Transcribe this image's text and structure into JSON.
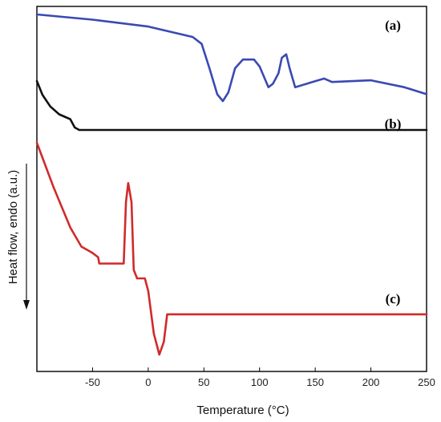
{
  "chart_data": {
    "type": "line",
    "title": "",
    "xlabel": "Temperature (°C)",
    "ylabel": "Heat flow, endo (a.u.)",
    "xlim": [
      -100,
      250
    ],
    "xticks": [
      -50,
      0,
      50,
      100,
      150,
      200,
      250
    ],
    "y_tick_labels": "none",
    "grid": false,
    "legend": "none",
    "ylabel_arrow": "down",
    "series": [
      {
        "name": "(a)",
        "color": "#3a49b3",
        "y_units": "relative heat flow (arbitrary)",
        "points": [
          [
            -100,
            0.0
          ],
          [
            -50,
            0.06
          ],
          [
            0,
            0.14
          ],
          [
            40,
            0.26
          ],
          [
            48,
            0.34
          ],
          [
            55,
            0.62
          ],
          [
            62,
            0.92
          ],
          [
            67,
            1.0
          ],
          [
            72,
            0.9
          ],
          [
            78,
            0.62
          ],
          [
            85,
            0.52
          ],
          [
            95,
            0.52
          ],
          [
            100,
            0.6
          ],
          [
            108,
            0.84
          ],
          [
            112,
            0.8
          ],
          [
            117,
            0.68
          ],
          [
            120,
            0.5
          ],
          [
            124,
            0.46
          ],
          [
            127,
            0.62
          ],
          [
            132,
            0.84
          ],
          [
            145,
            0.79
          ],
          [
            158,
            0.74
          ],
          [
            165,
            0.78
          ],
          [
            200,
            0.76
          ],
          [
            230,
            0.84
          ],
          [
            250,
            0.92
          ]
        ]
      },
      {
        "name": "(b)",
        "color": "#111111",
        "y_units": "relative heat flow (arbitrary)",
        "points": [
          [
            -100,
            0.0
          ],
          [
            -95,
            0.28
          ],
          [
            -88,
            0.52
          ],
          [
            -80,
            0.68
          ],
          [
            -75,
            0.73
          ],
          [
            -70,
            0.78
          ],
          [
            -66,
            0.95
          ],
          [
            -62,
            1.0
          ],
          [
            250,
            1.0
          ]
        ]
      },
      {
        "name": "(c)",
        "color": "#d12a2a",
        "y_units": "relative heat flow (arbitrary)",
        "points": [
          [
            -100,
            0.0
          ],
          [
            -85,
            0.21
          ],
          [
            -70,
            0.4
          ],
          [
            -60,
            0.49
          ],
          [
            -50,
            0.52
          ],
          [
            -45,
            0.54
          ],
          [
            -44,
            0.57
          ],
          [
            -22,
            0.57
          ],
          [
            -20,
            0.28
          ],
          [
            -18,
            0.19
          ],
          [
            -15,
            0.28
          ],
          [
            -13,
            0.6
          ],
          [
            -10,
            0.64
          ],
          [
            -3,
            0.64
          ],
          [
            0,
            0.7
          ],
          [
            5,
            0.9
          ],
          [
            10,
            1.0
          ],
          [
            14,
            0.94
          ],
          [
            17,
            0.81
          ],
          [
            22,
            0.81
          ],
          [
            250,
            0.81
          ]
        ]
      }
    ],
    "curve_labels": [
      "(a)",
      "(b)",
      "(c)"
    ]
  }
}
